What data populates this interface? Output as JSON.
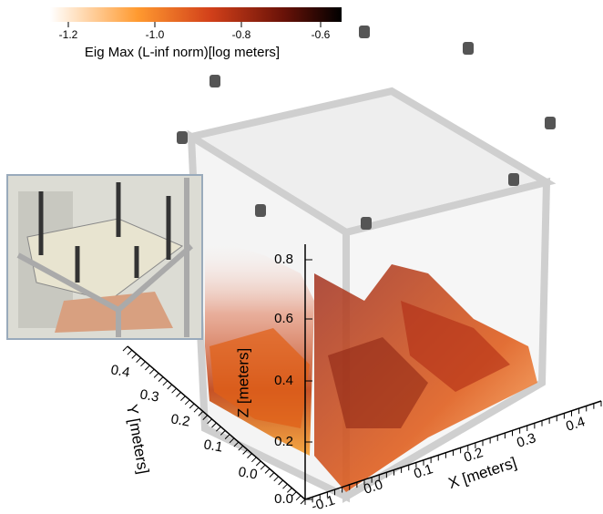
{
  "colorbar": {
    "ticks": [
      "-1.2",
      "-1.0",
      "-0.8",
      "-0.6"
    ],
    "label": "Eig Max (L-inf norm)[log meters]"
  },
  "axes": {
    "x": {
      "ticks": [
        "-0.1",
        "0.0",
        "0.1",
        "0.2",
        "0.3",
        "0.4"
      ],
      "label": "X [meters]"
    },
    "y": {
      "ticks": [
        "0.0",
        "0.1",
        "0.2",
        "0.3",
        "0.4"
      ],
      "label": "Y [meters]"
    },
    "z": {
      "ticks": [
        "0.0",
        "0.2",
        "0.4",
        "0.6",
        "0.8"
      ],
      "label": "Z [meters]"
    }
  }
}
